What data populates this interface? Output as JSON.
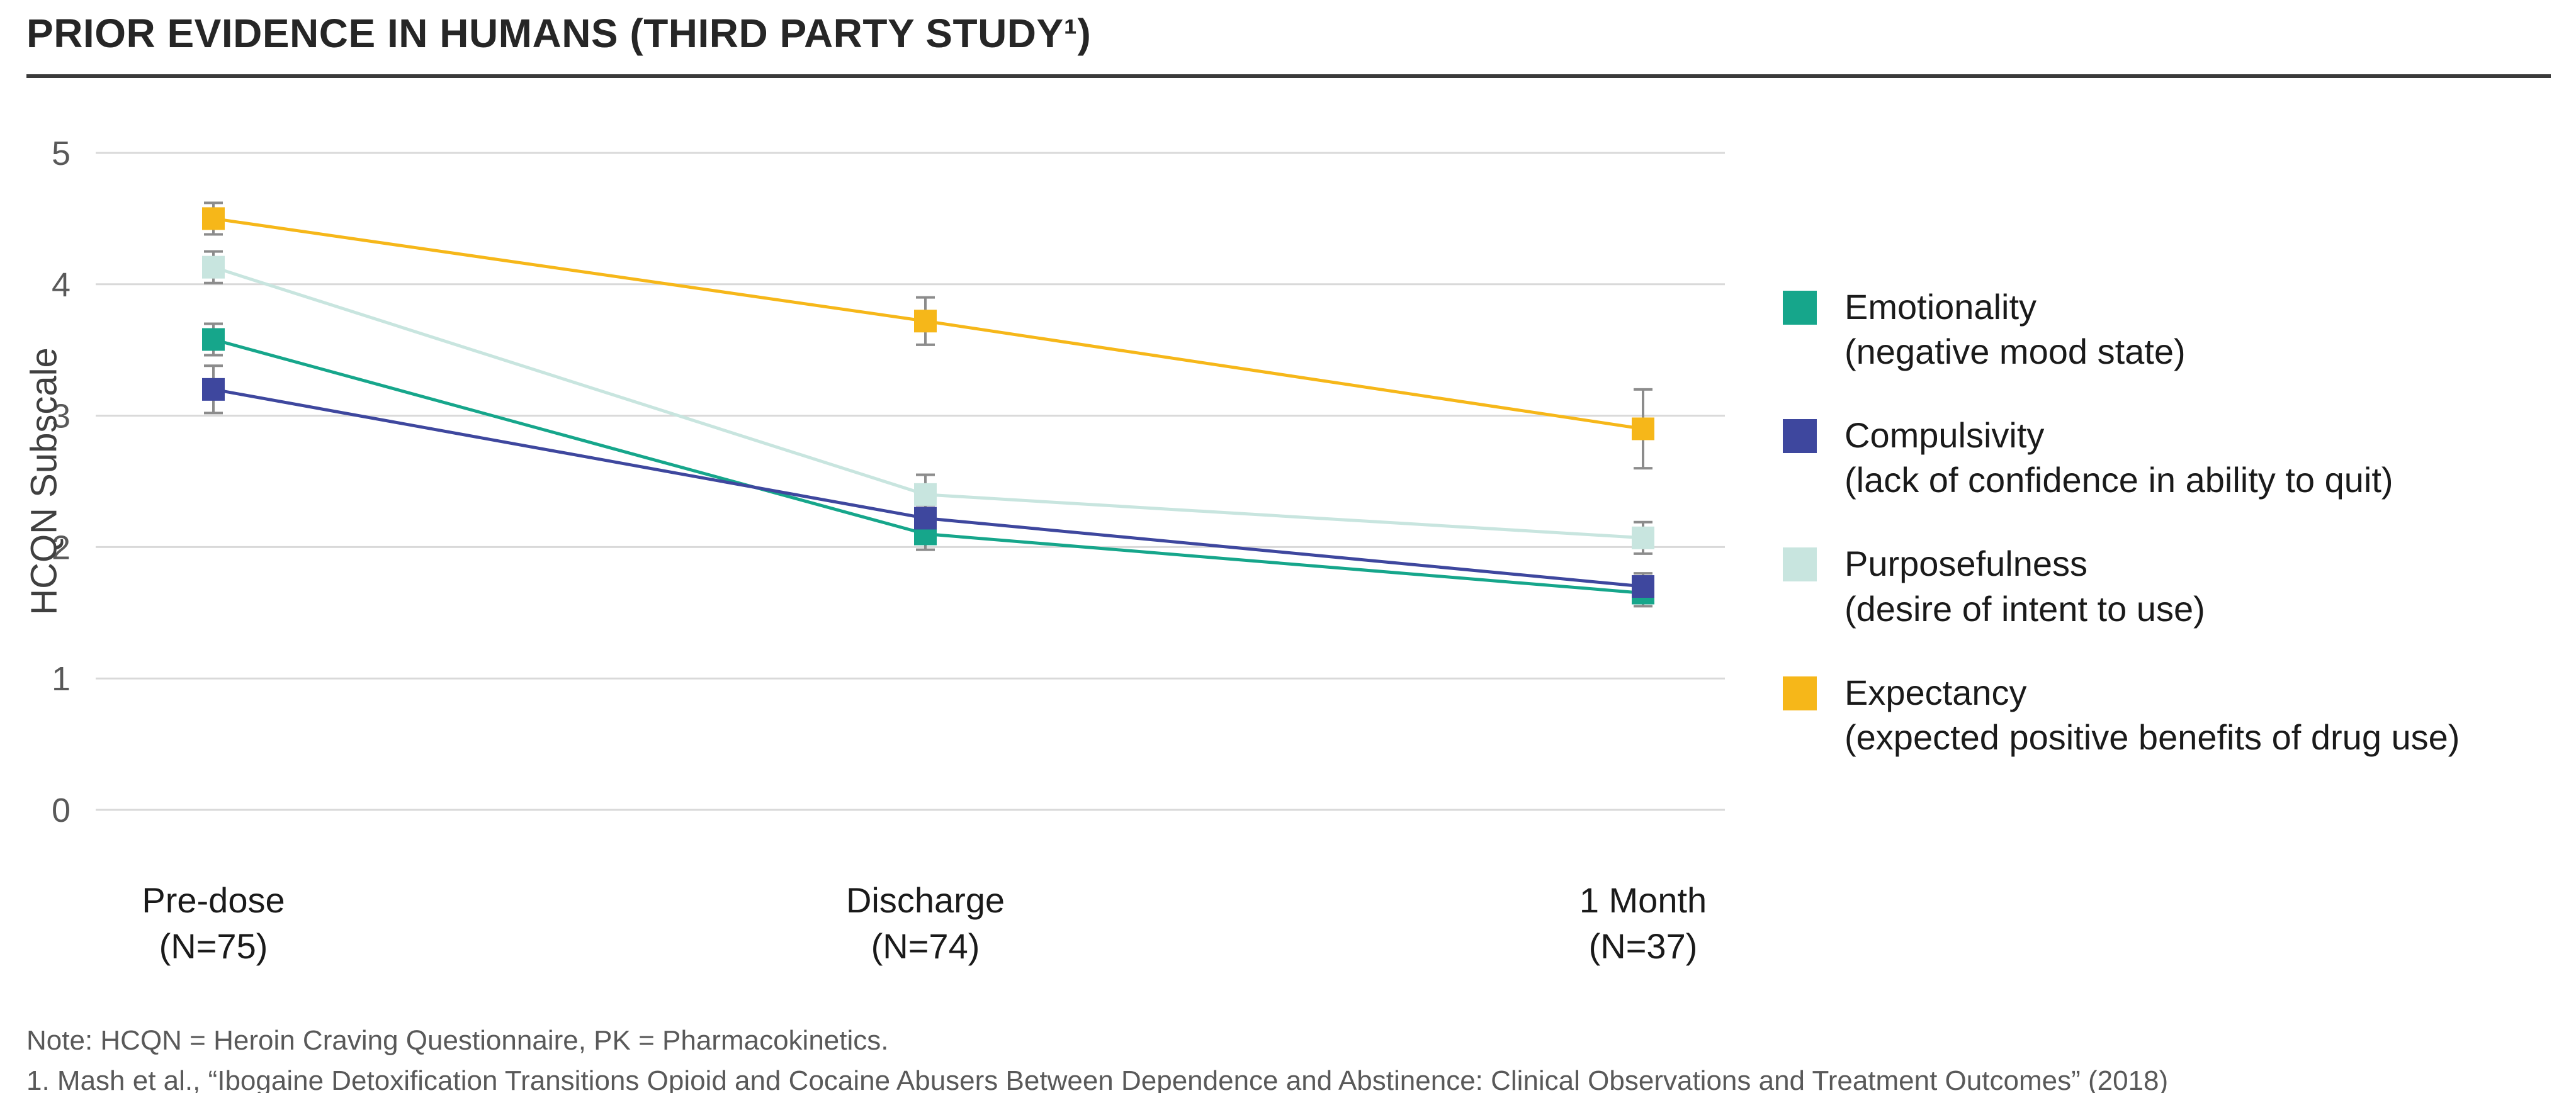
{
  "chart_data": {
    "type": "line",
    "title": "PRIOR EVIDENCE IN HUMANS (THIRD PARTY STUDY¹)",
    "xlabel": "",
    "ylabel": "HCQN Subscale",
    "ylim": [
      0,
      5
    ],
    "yticks": [
      0,
      1,
      2,
      3,
      4,
      5
    ],
    "grid": true,
    "legend_position": "right",
    "error_bar_color": "#8c8c8c",
    "gridline_color": "#d9d9d9",
    "categories": [
      {
        "label": "Pre-dose",
        "sublabel": "(N=75)"
      },
      {
        "label": "Discharge",
        "sublabel": "(N=74)"
      },
      {
        "label": "1 Month",
        "sublabel": "(N=37)"
      }
    ],
    "series": [
      {
        "name": "Emotionality",
        "description": "(negative mood state)",
        "color": "#16A68B",
        "marker": "square",
        "values": [
          3.58,
          2.1,
          1.65
        ],
        "errors": [
          0.12,
          0.12,
          0.1
        ]
      },
      {
        "name": "Compulsivity",
        "description": "(lack of confidence in ability to quit)",
        "color": "#3E479E",
        "marker": "square",
        "values": [
          3.2,
          2.22,
          1.7
        ],
        "errors": [
          0.18,
          0.1,
          0.1
        ]
      },
      {
        "name": "Purposefulness",
        "description": "(desire of intent to use)",
        "color": "#C8E5DF",
        "marker": "square",
        "values": [
          4.13,
          2.4,
          2.07
        ],
        "errors": [
          0.12,
          0.15,
          0.12
        ]
      },
      {
        "name": "Expectancy",
        "description": "(expected positive benefits of drug use)",
        "color": "#F6B719",
        "marker": "square",
        "values": [
          4.5,
          3.72,
          2.9
        ],
        "errors": [
          0.12,
          0.18,
          0.3
        ]
      }
    ]
  },
  "footnotes": {
    "note": "Note: HCQN = Heroin Craving Questionnaire, PK = Pharmacokinetics.",
    "reference": "1.   Mash et al., “Ibogaine Detoxification Transitions Opioid and Cocaine Abusers Between Dependence and Abstinence: Clinical Observations and Treatment Outcomes” (2018)"
  }
}
